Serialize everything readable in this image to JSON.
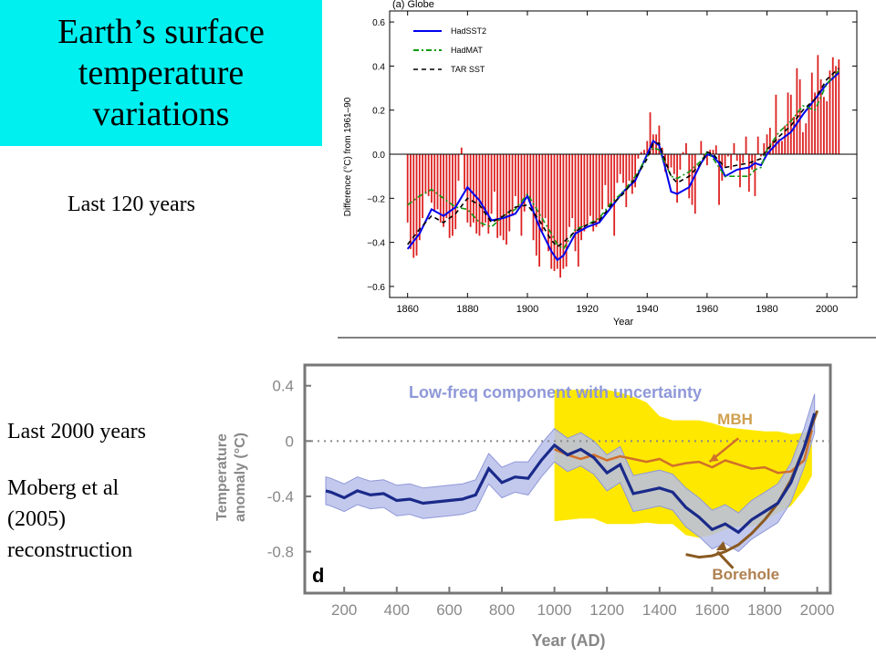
{
  "slide": {
    "title": "Earth’s surface\ntemperature\nvariations",
    "caption_top": "Last 120 years",
    "caption_bottom_1": "Last 2000 years",
    "caption_bottom_2": "Moberg et al\n(2005)\nreconstruction",
    "title_bg": "#00f0f0"
  },
  "chart_data": [
    {
      "type": "bar",
      "panel_label": "(a) Globe",
      "xlabel": "Year",
      "ylabel": "Difference (°C) from 1961–90",
      "xlim": [
        1854,
        2010
      ],
      "ylim": [
        -0.65,
        0.65
      ],
      "xticks": [
        1860,
        1880,
        1900,
        1920,
        1940,
        1960,
        1980,
        2000
      ],
      "yticks": [
        -0.6,
        -0.4,
        -0.2,
        0.0,
        0.2,
        0.4,
        0.6
      ],
      "ytick_labels": [
        "−0.6",
        "−0.4",
        "−0.2",
        "0.0",
        "0.2",
        "0.4",
        "0.6"
      ],
      "bar_color": "#dd2222",
      "bars": {
        "years": [
          1860,
          1861,
          1862,
          1863,
          1864,
          1865,
          1866,
          1867,
          1868,
          1869,
          1870,
          1871,
          1872,
          1873,
          1874,
          1875,
          1876,
          1877,
          1878,
          1879,
          1880,
          1881,
          1882,
          1883,
          1884,
          1885,
          1886,
          1887,
          1888,
          1889,
          1890,
          1891,
          1892,
          1893,
          1894,
          1895,
          1896,
          1897,
          1898,
          1899,
          1900,
          1901,
          1902,
          1903,
          1904,
          1905,
          1906,
          1907,
          1908,
          1909,
          1910,
          1911,
          1912,
          1913,
          1914,
          1915,
          1916,
          1917,
          1918,
          1919,
          1920,
          1921,
          1922,
          1923,
          1924,
          1925,
          1926,
          1927,
          1928,
          1929,
          1930,
          1931,
          1932,
          1933,
          1934,
          1935,
          1936,
          1937,
          1938,
          1939,
          1940,
          1941,
          1942,
          1943,
          1944,
          1945,
          1946,
          1947,
          1948,
          1949,
          1950,
          1951,
          1952,
          1953,
          1954,
          1955,
          1956,
          1957,
          1958,
          1959,
          1960,
          1961,
          1962,
          1963,
          1964,
          1965,
          1966,
          1967,
          1968,
          1969,
          1970,
          1971,
          1972,
          1973,
          1974,
          1975,
          1976,
          1977,
          1978,
          1979,
          1980,
          1981,
          1982,
          1983,
          1984,
          1985,
          1986,
          1987,
          1988,
          1989,
          1990,
          1991,
          1992,
          1993,
          1994,
          1995,
          1996,
          1997,
          1998,
          1999,
          2000,
          2001,
          2002,
          2003,
          2004
        ],
        "values": [
          -0.31,
          -0.43,
          -0.47,
          -0.46,
          -0.39,
          -0.29,
          -0.18,
          -0.19,
          -0.22,
          -0.26,
          -0.25,
          -0.31,
          -0.33,
          -0.29,
          -0.38,
          -0.37,
          -0.34,
          -0.12,
          0.03,
          -0.16,
          -0.31,
          -0.33,
          -0.31,
          -0.36,
          -0.37,
          -0.33,
          -0.31,
          -0.36,
          -0.27,
          -0.17,
          -0.38,
          -0.37,
          -0.39,
          -0.41,
          -0.35,
          -0.28,
          -0.19,
          -0.24,
          -0.37,
          -0.26,
          -0.19,
          -0.22,
          -0.39,
          -0.46,
          -0.51,
          -0.35,
          -0.29,
          -0.44,
          -0.52,
          -0.53,
          -0.52,
          -0.56,
          -0.52,
          -0.51,
          -0.33,
          -0.29,
          -0.44,
          -0.51,
          -0.39,
          -0.35,
          -0.32,
          -0.28,
          -0.35,
          -0.33,
          -0.31,
          -0.25,
          -0.14,
          -0.24,
          -0.24,
          -0.37,
          -0.13,
          -0.09,
          -0.13,
          -0.24,
          -0.12,
          -0.18,
          -0.15,
          -0.02,
          0.01,
          0.02,
          0.06,
          0.19,
          0.09,
          0.09,
          0.13,
          0.03,
          -0.08,
          -0.07,
          -0.06,
          -0.09,
          -0.22,
          -0.07,
          0.01,
          0.05,
          -0.2,
          -0.23,
          -0.27,
          0.0,
          0.06,
          -0.01,
          -0.05,
          0.02,
          0.02,
          0.04,
          -0.23,
          -0.12,
          -0.06,
          -0.01,
          -0.07,
          0.05,
          -0.03,
          -0.15,
          -0.04,
          0.08,
          -0.17,
          -0.07,
          -0.19,
          0.08,
          -0.01,
          0.05,
          0.09,
          0.12,
          0.06,
          0.27,
          0.07,
          0.06,
          0.13,
          0.28,
          0.27,
          0.17,
          0.39,
          0.34,
          0.1,
          0.14,
          0.21,
          0.37,
          0.28,
          0.45,
          0.34,
          0.26,
          0.24,
          0.38,
          0.44,
          0.4,
          0.43
        ]
      },
      "series": [
        {
          "name": "HadSST2",
          "color": "#0000ee",
          "dash": "solid",
          "x": [
            1860,
            1864,
            1868,
            1872,
            1876,
            1880,
            1884,
            1888,
            1892,
            1896,
            1900,
            1904,
            1908,
            1910,
            1912,
            1916,
            1920,
            1924,
            1928,
            1932,
            1936,
            1940,
            1942,
            1944,
            1946,
            1948,
            1950,
            1954,
            1958,
            1960,
            1962,
            1964,
            1966,
            1970,
            1974,
            1976,
            1978,
            1980,
            1984,
            1988,
            1992,
            1996,
            2000,
            2004
          ],
          "y": [
            -0.43,
            -0.36,
            -0.25,
            -0.28,
            -0.24,
            -0.15,
            -0.21,
            -0.3,
            -0.29,
            -0.27,
            -0.19,
            -0.33,
            -0.44,
            -0.48,
            -0.46,
            -0.36,
            -0.33,
            -0.31,
            -0.24,
            -0.17,
            -0.12,
            0.0,
            0.06,
            0.04,
            -0.06,
            -0.17,
            -0.18,
            -0.15,
            -0.04,
            0.0,
            -0.01,
            -0.04,
            -0.1,
            -0.07,
            -0.06,
            -0.04,
            -0.05,
            0.0,
            0.06,
            0.1,
            0.18,
            0.25,
            0.32,
            0.37
          ]
        },
        {
          "name": "HadMAT",
          "color": "#119911",
          "dash": "dashdot",
          "x": [
            1860,
            1864,
            1868,
            1872,
            1876,
            1880,
            1884,
            1888,
            1892,
            1896,
            1900,
            1904,
            1908,
            1910,
            1912,
            1916,
            1920,
            1924,
            1928,
            1932,
            1936,
            1940,
            1942,
            1944,
            1946,
            1948,
            1950,
            1954,
            1958,
            1960,
            1962,
            1964,
            1966,
            1970,
            1974,
            1976,
            1978,
            1980,
            1984,
            1988,
            1992,
            1996,
            2000,
            2004
          ],
          "y": [
            -0.23,
            -0.19,
            -0.16,
            -0.2,
            -0.24,
            -0.25,
            -0.31,
            -0.33,
            -0.28,
            -0.25,
            -0.18,
            -0.27,
            -0.36,
            -0.41,
            -0.43,
            -0.34,
            -0.32,
            -0.29,
            -0.22,
            -0.17,
            -0.1,
            -0.01,
            0.03,
            0.02,
            -0.04,
            -0.1,
            -0.11,
            -0.08,
            -0.03,
            0.01,
            -0.02,
            -0.06,
            -0.1,
            -0.1,
            -0.1,
            -0.07,
            -0.06,
            0.02,
            0.1,
            0.15,
            0.22,
            0.2,
            0.32,
            0.38
          ]
        },
        {
          "name": "TAR SST",
          "color": "#000000",
          "dash": "dashed",
          "x": [
            1860,
            1864,
            1868,
            1872,
            1876,
            1880,
            1884,
            1888,
            1892,
            1896,
            1900,
            1904,
            1908,
            1910,
            1912,
            1916,
            1920,
            1924,
            1928,
            1932,
            1936,
            1940,
            1942,
            1944,
            1946,
            1948,
            1950,
            1954,
            1958,
            1960,
            1962,
            1964,
            1966,
            1970,
            1974,
            1976,
            1978,
            1980,
            1984,
            1988,
            1992,
            1996,
            2000,
            2004
          ],
          "y": [
            -0.41,
            -0.34,
            -0.28,
            -0.31,
            -0.27,
            -0.2,
            -0.23,
            -0.31,
            -0.28,
            -0.24,
            -0.23,
            -0.3,
            -0.39,
            -0.42,
            -0.4,
            -0.35,
            -0.32,
            -0.3,
            -0.23,
            -0.18,
            -0.11,
            -0.02,
            0.05,
            0.05,
            -0.03,
            -0.1,
            -0.13,
            -0.1,
            -0.04,
            0.01,
            0.0,
            -0.03,
            -0.06,
            -0.05,
            -0.04,
            -0.03,
            -0.02,
            0.02,
            0.08,
            0.13,
            0.2,
            0.25,
            0.34,
            0.39
          ]
        }
      ],
      "legend_position": "top-left"
    },
    {
      "type": "line",
      "panel_label": "d",
      "title": "Low-freq component with uncertainty",
      "xlabel": "Year (AD)",
      "ylabel": "Temperature anomaly (°C)",
      "xlim": [
        50,
        2050
      ],
      "ylim": [
        -1.1,
        0.55
      ],
      "xticks": [
        200,
        400,
        600,
        800,
        1000,
        1200,
        1400,
        1600,
        1800,
        2000
      ],
      "yticks": [
        0.4,
        0,
        -0.4,
        -0.8
      ],
      "ytick_labels": [
        "0.4",
        "0",
        "-0.4",
        "-0.8"
      ],
      "zero_line": "dotted",
      "series": [
        {
          "name": "Low-freq component",
          "color": "#1a2a8a",
          "band_color": "#b8c0ea",
          "x": [
            130,
            150,
            200,
            250,
            300,
            350,
            400,
            450,
            500,
            550,
            600,
            650,
            700,
            750,
            800,
            850,
            900,
            950,
            1000,
            1050,
            1100,
            1150,
            1200,
            1250,
            1300,
            1350,
            1400,
            1450,
            1500,
            1550,
            1600,
            1650,
            1700,
            1750,
            1800,
            1850,
            1900,
            1950,
            1990
          ],
          "y": [
            -0.36,
            -0.37,
            -0.41,
            -0.36,
            -0.39,
            -0.38,
            -0.43,
            -0.42,
            -0.45,
            -0.44,
            -0.43,
            -0.42,
            -0.39,
            -0.2,
            -0.3,
            -0.26,
            -0.27,
            -0.14,
            -0.03,
            -0.1,
            -0.06,
            -0.12,
            -0.23,
            -0.17,
            -0.38,
            -0.36,
            -0.34,
            -0.37,
            -0.48,
            -0.55,
            -0.64,
            -0.6,
            -0.66,
            -0.57,
            -0.51,
            -0.45,
            -0.3,
            -0.05,
            0.2
          ],
          "band_halfwidth": [
            0.1,
            0.1,
            0.1,
            0.1,
            0.1,
            0.1,
            0.11,
            0.11,
            0.11,
            0.11,
            0.11,
            0.11,
            0.11,
            0.11,
            0.11,
            0.11,
            0.12,
            0.12,
            0.12,
            0.12,
            0.12,
            0.12,
            0.13,
            0.13,
            0.13,
            0.13,
            0.13,
            0.13,
            0.14,
            0.14,
            0.14,
            0.14,
            0.14,
            0.14,
            0.14,
            0.14,
            0.14,
            0.14,
            0.14
          ]
        },
        {
          "name": "MBH",
          "color": "#d0702a",
          "band_color": "#ffe800",
          "x": [
            1000,
            1050,
            1100,
            1150,
            1200,
            1250,
            1300,
            1350,
            1400,
            1450,
            1500,
            1550,
            1600,
            1650,
            1700,
            1750,
            1800,
            1850,
            1900,
            1950,
            1980
          ],
          "y": [
            -0.06,
            -0.1,
            -0.13,
            -0.1,
            -0.14,
            -0.11,
            -0.13,
            -0.15,
            -0.13,
            -0.18,
            -0.16,
            -0.15,
            -0.19,
            -0.14,
            -0.17,
            -0.2,
            -0.19,
            -0.23,
            -0.22,
            -0.14,
            0.08
          ],
          "band_upper": [
            0.37,
            0.37,
            0.37,
            0.37,
            0.37,
            0.35,
            0.32,
            0.28,
            0.18,
            0.15,
            0.15,
            0.15,
            0.13,
            0.1,
            0.09,
            0.08,
            0.07,
            0.07,
            0.05,
            0.06,
            0.08
          ],
          "band_lower": [
            -0.58,
            -0.57,
            -0.56,
            -0.56,
            -0.6,
            -0.6,
            -0.6,
            -0.59,
            -0.6,
            -0.6,
            -0.68,
            -0.7,
            -0.68,
            -0.64,
            -0.62,
            -0.62,
            -0.58,
            -0.52,
            -0.47,
            -0.35,
            -0.25
          ]
        },
        {
          "name": "Borehole",
          "color": "#8a5a22",
          "x": [
            1500,
            1550,
            1600,
            1650,
            1700,
            1750,
            1800,
            1850,
            1900,
            1950,
            2000
          ],
          "y": [
            -0.82,
            -0.84,
            -0.83,
            -0.8,
            -0.75,
            -0.67,
            -0.57,
            -0.45,
            -0.28,
            -0.05,
            0.22
          ]
        }
      ],
      "annotations": [
        "MBH",
        "Borehole"
      ]
    }
  ]
}
